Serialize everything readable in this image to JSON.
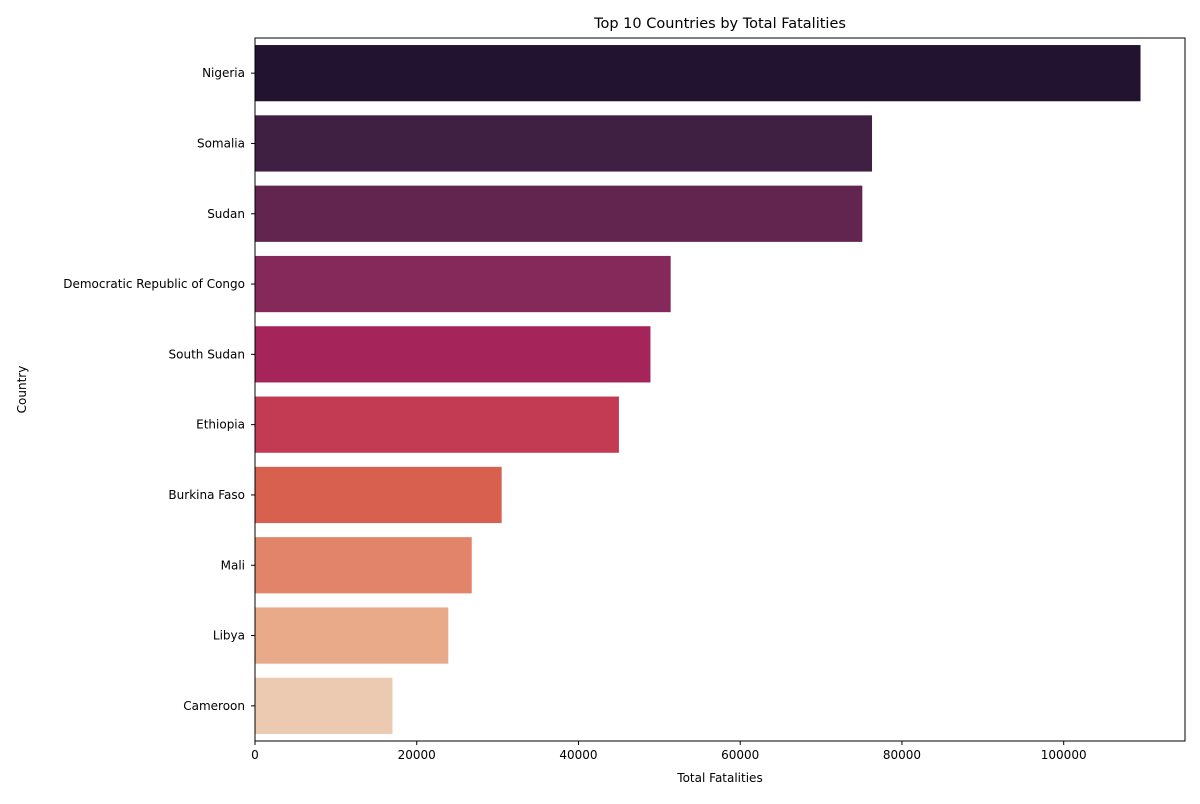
{
  "chart_data": {
    "type": "bar",
    "orientation": "horizontal",
    "title": "Top 10 Countries by Total Fatalities",
    "xlabel": "Total Fatalities",
    "ylabel": "Country",
    "categories": [
      "Nigeria",
      "Somalia",
      "Sudan",
      "Democratic Republic of Congo",
      "South Sudan",
      "Ethiopia",
      "Burkina Faso",
      "Mali",
      "Libya",
      "Cameroon"
    ],
    "values": [
      109500,
      76300,
      75100,
      51400,
      48900,
      45000,
      30500,
      26800,
      23900,
      17000
    ],
    "colors": [
      "#221330",
      "#3f1f42",
      "#61254f",
      "#84295a",
      "#a5255a",
      "#c23b53",
      "#d8604f",
      "#e18469",
      "#e8aa88",
      "#eccab1"
    ],
    "xlim": [
      0,
      115000
    ],
    "xticks": [
      0,
      20000,
      40000,
      60000,
      80000,
      100000
    ],
    "xtick_labels": [
      "0",
      "20000",
      "40000",
      "60000",
      "80000",
      "100000"
    ],
    "grid": false,
    "legend": "none"
  }
}
